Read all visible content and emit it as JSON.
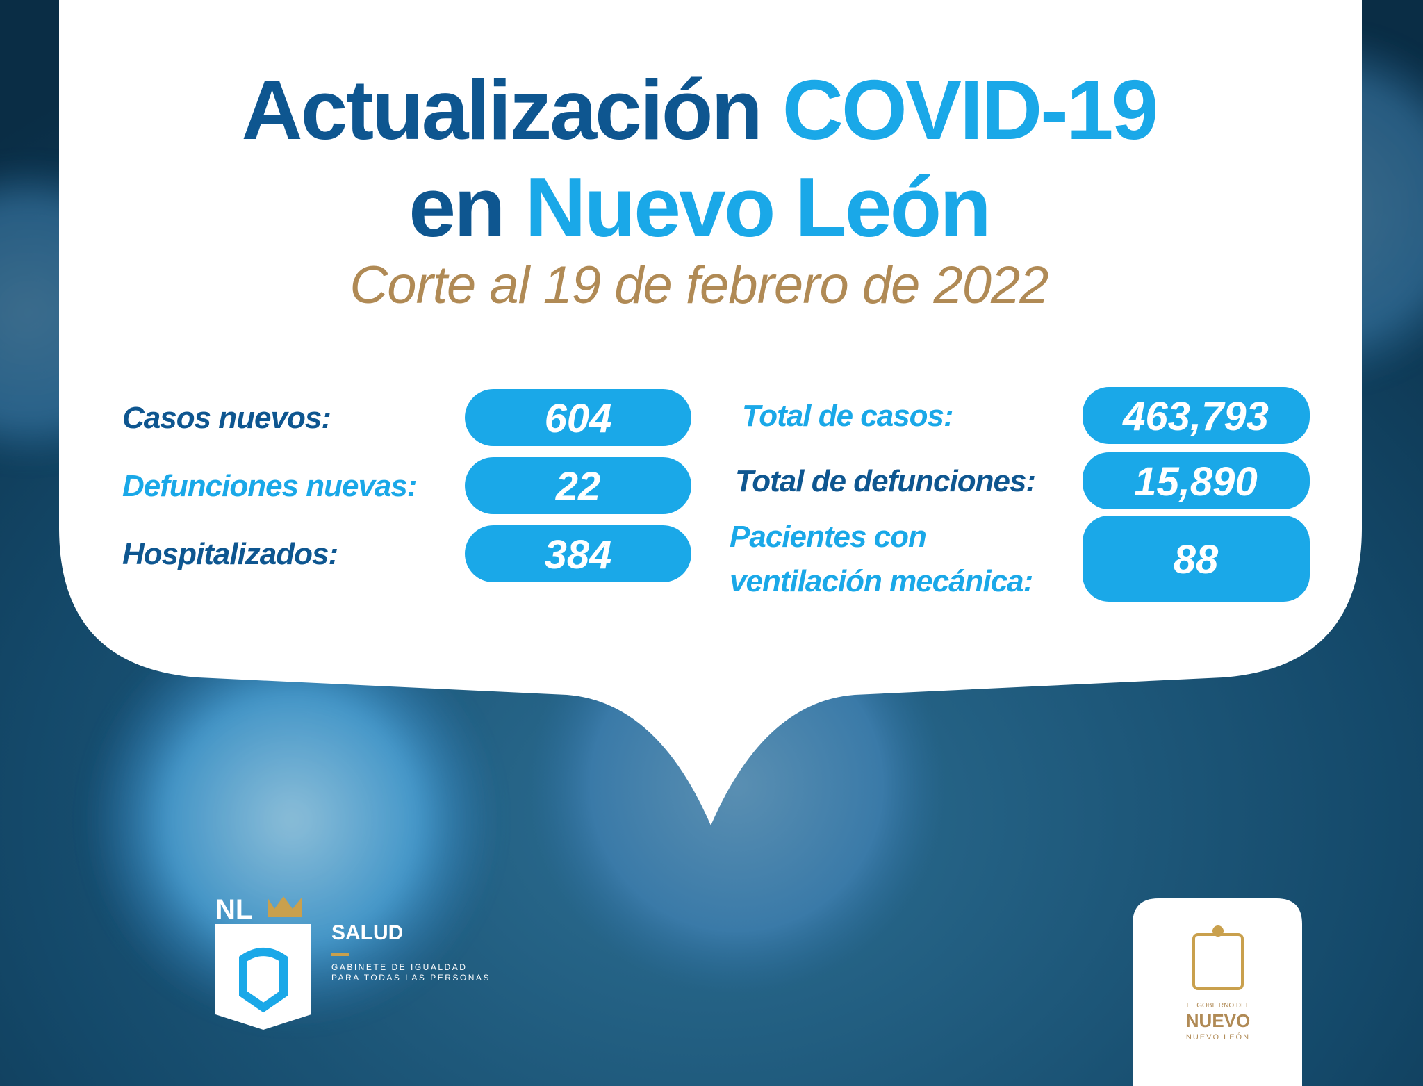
{
  "header": {
    "title": [
      "Actualización",
      "COVID-19",
      "en",
      "Nuevo León"
    ],
    "subtitle": "Corte al 19 de febrero de 2022"
  },
  "stats": {
    "left": [
      {
        "label": "Casos nuevos:",
        "value": "604"
      },
      {
        "label": "Defunciones nuevas:",
        "value": "22"
      },
      {
        "label": "Hospitalizados:",
        "value": "384"
      }
    ],
    "right": [
      {
        "label": [
          "Total de casos:"
        ],
        "value": "463,793"
      },
      {
        "label": [
          "Total de defunciones:"
        ],
        "value": "15,890"
      },
      {
        "label": [
          "Pacientes con",
          "ventilación mecánica:"
        ],
        "value": "88"
      }
    ]
  },
  "footer": {
    "left_logo": {
      "mark": "NL",
      "name": "SALUD",
      "lines": [
        "GABINETE DE IGUALDAD",
        "PARA TODAS LAS PERSONAS"
      ]
    },
    "right_logo": {
      "lines": [
        "EL GOBIERNO DEL",
        "NUEVO",
        "NUEVO LEÓN"
      ]
    }
  }
}
